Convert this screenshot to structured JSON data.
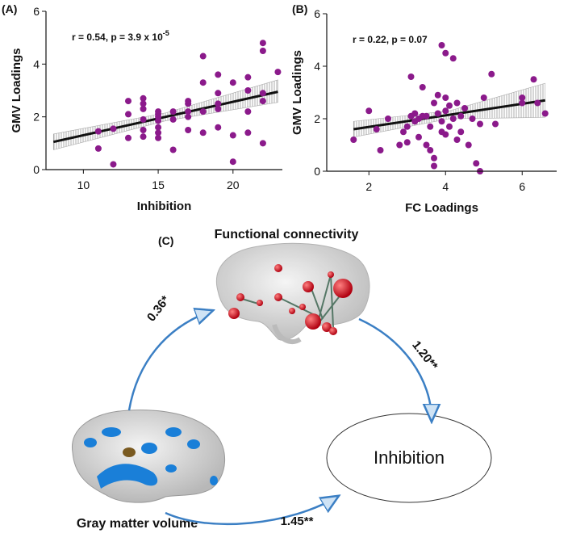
{
  "chart_data": [
    {
      "type": "scatter",
      "panel_label": "(A)",
      "annotation": "r = 0.54, p = 3.9 x 10",
      "annotation_sup": "-5",
      "x_label": "Inhibition",
      "y_label": "GMV Loadings",
      "color": "#8b1a8b",
      "xlim": [
        7.5,
        23.3
      ],
      "ylim": [
        0,
        6
      ],
      "xticks": [
        10,
        15,
        20
      ],
      "yticks": [
        0,
        2,
        4,
        6
      ],
      "x": [
        11,
        11,
        12,
        12,
        13,
        13,
        13,
        14,
        14,
        14,
        14,
        14,
        14,
        15,
        15,
        15,
        15,
        15,
        15,
        15,
        16,
        16,
        16,
        17,
        17,
        17,
        17,
        17,
        18,
        18,
        18,
        18,
        19,
        19,
        19,
        19,
        19,
        20,
        20,
        20,
        21,
        21,
        21,
        21,
        22,
        22,
        22,
        22,
        22,
        23
      ],
      "values": [
        0.8,
        1.45,
        0.2,
        1.55,
        1.2,
        2.1,
        2.6,
        1.25,
        1.5,
        1.9,
        2.3,
        2.5,
        2.7,
        1.2,
        1.4,
        1.6,
        1.85,
        2.0,
        2.1,
        2.2,
        0.75,
        1.9,
        2.2,
        1.5,
        2.0,
        2.2,
        2.5,
        2.6,
        1.4,
        2.2,
        3.3,
        4.3,
        1.6,
        2.3,
        2.5,
        2.9,
        3.6,
        0.3,
        1.3,
        3.3,
        1.4,
        2.2,
        3.0,
        3.5,
        1.0,
        2.6,
        2.9,
        4.5,
        4.8,
        3.7
      ],
      "fit": {
        "x": [
          8,
          23
        ],
        "values": [
          1.05,
          2.95
        ]
      },
      "band": {
        "x": [
          8,
          15.5,
          23
        ],
        "lower": [
          0.75,
          1.85,
          2.55
        ],
        "upper": [
          1.35,
          2.15,
          3.4
        ]
      }
    },
    {
      "type": "scatter",
      "panel_label": "(B)",
      "annotation": "r = 0.22, p = 0.07",
      "x_label": "FC Loadings",
      "y_label": "GMV Loadings",
      "color": "#8b1a8b",
      "xlim": [
        0.9,
        6.9
      ],
      "ylim": [
        0,
        6
      ],
      "xticks": [
        2,
        4,
        6
      ],
      "yticks": [
        0,
        2,
        4,
        6
      ],
      "x": [
        1.6,
        2.0,
        2.3,
        2.5,
        2.8,
        2.9,
        3.0,
        3.0,
        3.1,
        3.1,
        3.2,
        3.2,
        3.3,
        3.3,
        3.4,
        3.4,
        3.5,
        3.5,
        3.6,
        3.6,
        3.7,
        3.7,
        3.7,
        3.8,
        3.8,
        3.9,
        3.9,
        4.0,
        4.0,
        4.0,
        4.0,
        4.1,
        4.1,
        4.2,
        4.2,
        4.3,
        4.3,
        4.4,
        4.4,
        4.5,
        4.6,
        4.7,
        4.8,
        4.9,
        4.9,
        5.0,
        5.2,
        5.3,
        6.0,
        6.0,
        6.3,
        6.4,
        6.6,
        3.9,
        2.2
      ],
      "values": [
        1.2,
        2.3,
        0.8,
        2.0,
        1.0,
        1.5,
        1.7,
        1.1,
        2.1,
        3.6,
        1.9,
        2.2,
        1.3,
        2.0,
        2.1,
        3.2,
        1.0,
        2.1,
        1.7,
        0.8,
        0.5,
        2.6,
        0.2,
        2.2,
        2.9,
        4.8,
        1.9,
        4.5,
        2.8,
        1.4,
        2.3,
        2.5,
        1.7,
        4.3,
        2.0,
        1.2,
        2.6,
        1.5,
        2.1,
        2.4,
        1.0,
        2.0,
        0.3,
        0.0,
        1.8,
        2.8,
        3.7,
        1.8,
        2.8,
        2.6,
        3.5,
        2.6,
        2.2,
        1.5,
        1.6
      ],
      "fit": {
        "x": [
          1.6,
          6.6
        ],
        "values": [
          1.6,
          2.7
        ]
      },
      "band": {
        "x": [
          1.6,
          4.1,
          6.6
        ],
        "lower": [
          1.3,
          2.0,
          2.05
        ],
        "upper": [
          1.9,
          2.3,
          3.35
        ]
      }
    }
  ],
  "diagram": {
    "panel_label": "(C)",
    "fc_label": "Functional connectivity",
    "gmv_label": "Gray matter volume",
    "outcome_label": "Inhibition",
    "edges": [
      {
        "label": "0.36*"
      },
      {
        "label": "1.20**"
      },
      {
        "label": "1.45**"
      }
    ]
  }
}
